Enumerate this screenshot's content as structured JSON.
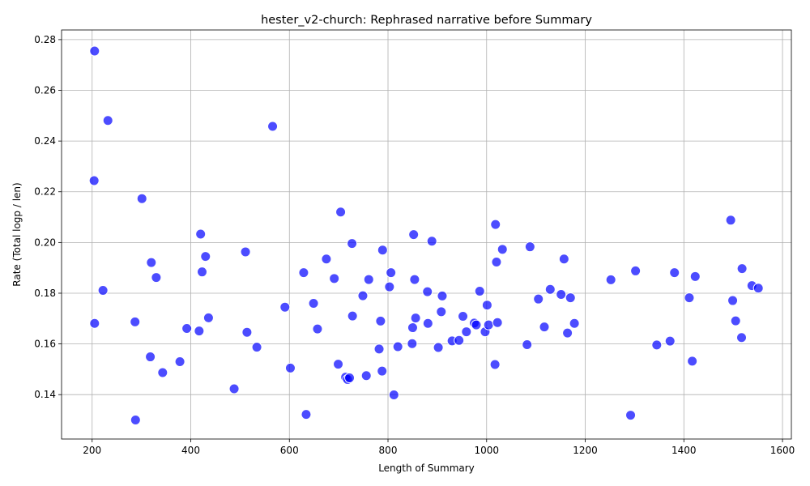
{
  "chart_data": {
    "type": "scatter",
    "title": "hester_v2-church: Rephrased narrative before Summary",
    "xlabel": "Length of Summary",
    "ylabel": "Rate (Total logp / len)",
    "xlim": [
      138,
      1618
    ],
    "ylim": [
      0.1225,
      0.2838
    ],
    "xticks": [
      200,
      400,
      600,
      800,
      1000,
      1200,
      1400,
      1600
    ],
    "yticks": [
      0.14,
      0.16,
      0.18,
      0.2,
      0.22,
      0.24,
      0.26,
      0.28
    ],
    "xtick_labels": [
      "200",
      "400",
      "600",
      "800",
      "1000",
      "1200",
      "1400",
      "1600"
    ],
    "ytick_labels": [
      "0.14",
      "0.16",
      "0.18",
      "0.20",
      "0.22",
      "0.24",
      "0.26",
      "0.28"
    ],
    "grid": true,
    "color": "#0000ff",
    "points": [
      {
        "x": 205,
        "y": 0.2755
      },
      {
        "x": 232,
        "y": 0.2481
      },
      {
        "x": 204,
        "y": 0.2244
      },
      {
        "x": 301,
        "y": 0.2173
      },
      {
        "x": 222,
        "y": 0.1811
      },
      {
        "x": 205,
        "y": 0.1681
      },
      {
        "x": 320,
        "y": 0.1921
      },
      {
        "x": 330,
        "y": 0.1862
      },
      {
        "x": 287,
        "y": 0.1687
      },
      {
        "x": 318,
        "y": 0.1549
      },
      {
        "x": 343,
        "y": 0.1487
      },
      {
        "x": 288,
        "y": 0.13
      },
      {
        "x": 378,
        "y": 0.153
      },
      {
        "x": 392,
        "y": 0.1661
      },
      {
        "x": 417,
        "y": 0.1651
      },
      {
        "x": 420,
        "y": 0.2033
      },
      {
        "x": 423,
        "y": 0.1884
      },
      {
        "x": 430,
        "y": 0.1945
      },
      {
        "x": 436,
        "y": 0.1703
      },
      {
        "x": 488,
        "y": 0.1423
      },
      {
        "x": 511,
        "y": 0.1963
      },
      {
        "x": 514,
        "y": 0.1646
      },
      {
        "x": 534,
        "y": 0.1587
      },
      {
        "x": 566,
        "y": 0.2458
      },
      {
        "x": 591,
        "y": 0.1745
      },
      {
        "x": 602,
        "y": 0.1505
      },
      {
        "x": 629,
        "y": 0.1881
      },
      {
        "x": 634,
        "y": 0.1322
      },
      {
        "x": 649,
        "y": 0.176
      },
      {
        "x": 657,
        "y": 0.1659
      },
      {
        "x": 675,
        "y": 0.1935
      },
      {
        "x": 691,
        "y": 0.1858
      },
      {
        "x": 699,
        "y": 0.152
      },
      {
        "x": 704,
        "y": 0.212
      },
      {
        "x": 714,
        "y": 0.1469
      },
      {
        "x": 718,
        "y": 0.146
      },
      {
        "x": 722,
        "y": 0.1466
      },
      {
        "x": 727,
        "y": 0.1996
      },
      {
        "x": 728,
        "y": 0.171
      },
      {
        "x": 749,
        "y": 0.179
      },
      {
        "x": 756,
        "y": 0.1475
      },
      {
        "x": 761,
        "y": 0.1854
      },
      {
        "x": 782,
        "y": 0.158
      },
      {
        "x": 785,
        "y": 0.169
      },
      {
        "x": 788,
        "y": 0.1493
      },
      {
        "x": 789,
        "y": 0.197
      },
      {
        "x": 803,
        "y": 0.1825
      },
      {
        "x": 806,
        "y": 0.1881
      },
      {
        "x": 812,
        "y": 0.1399
      },
      {
        "x": 820,
        "y": 0.1589
      },
      {
        "x": 849,
        "y": 0.1601
      },
      {
        "x": 850,
        "y": 0.1664
      },
      {
        "x": 852,
        "y": 0.2031
      },
      {
        "x": 854,
        "y": 0.1854
      },
      {
        "x": 856,
        "y": 0.1702
      },
      {
        "x": 880,
        "y": 0.1806
      },
      {
        "x": 881,
        "y": 0.1681
      },
      {
        "x": 889,
        "y": 0.2005
      },
      {
        "x": 902,
        "y": 0.1586
      },
      {
        "x": 908,
        "y": 0.1727
      },
      {
        "x": 910,
        "y": 0.1789
      },
      {
        "x": 930,
        "y": 0.1612
      },
      {
        "x": 944,
        "y": 0.1614
      },
      {
        "x": 952,
        "y": 0.1709
      },
      {
        "x": 959,
        "y": 0.1648
      },
      {
        "x": 975,
        "y": 0.1682
      },
      {
        "x": 979,
        "y": 0.1675
      },
      {
        "x": 986,
        "y": 0.1808
      },
      {
        "x": 997,
        "y": 0.1648
      },
      {
        "x": 1001,
        "y": 0.1753
      },
      {
        "x": 1004,
        "y": 0.1675
      },
      {
        "x": 1017,
        "y": 0.1519
      },
      {
        "x": 1018,
        "y": 0.2071
      },
      {
        "x": 1020,
        "y": 0.1923
      },
      {
        "x": 1022,
        "y": 0.1684
      },
      {
        "x": 1032,
        "y": 0.1973
      },
      {
        "x": 1082,
        "y": 0.1597
      },
      {
        "x": 1088,
        "y": 0.1983
      },
      {
        "x": 1105,
        "y": 0.1777
      },
      {
        "x": 1117,
        "y": 0.1667
      },
      {
        "x": 1129,
        "y": 0.1815
      },
      {
        "x": 1151,
        "y": 0.1795
      },
      {
        "x": 1157,
        "y": 0.1935
      },
      {
        "x": 1164,
        "y": 0.1643
      },
      {
        "x": 1170,
        "y": 0.1782
      },
      {
        "x": 1178,
        "y": 0.1681
      },
      {
        "x": 1252,
        "y": 0.1853
      },
      {
        "x": 1292,
        "y": 0.1319
      },
      {
        "x": 1302,
        "y": 0.1888
      },
      {
        "x": 1345,
        "y": 0.1596
      },
      {
        "x": 1372,
        "y": 0.1611
      },
      {
        "x": 1381,
        "y": 0.1881
      },
      {
        "x": 1411,
        "y": 0.1782
      },
      {
        "x": 1417,
        "y": 0.1532
      },
      {
        "x": 1423,
        "y": 0.1866
      },
      {
        "x": 1495,
        "y": 0.2088
      },
      {
        "x": 1499,
        "y": 0.1771
      },
      {
        "x": 1505,
        "y": 0.1691
      },
      {
        "x": 1517,
        "y": 0.1625
      },
      {
        "x": 1518,
        "y": 0.1897
      },
      {
        "x": 1538,
        "y": 0.183
      },
      {
        "x": 1551,
        "y": 0.182
      }
    ]
  }
}
